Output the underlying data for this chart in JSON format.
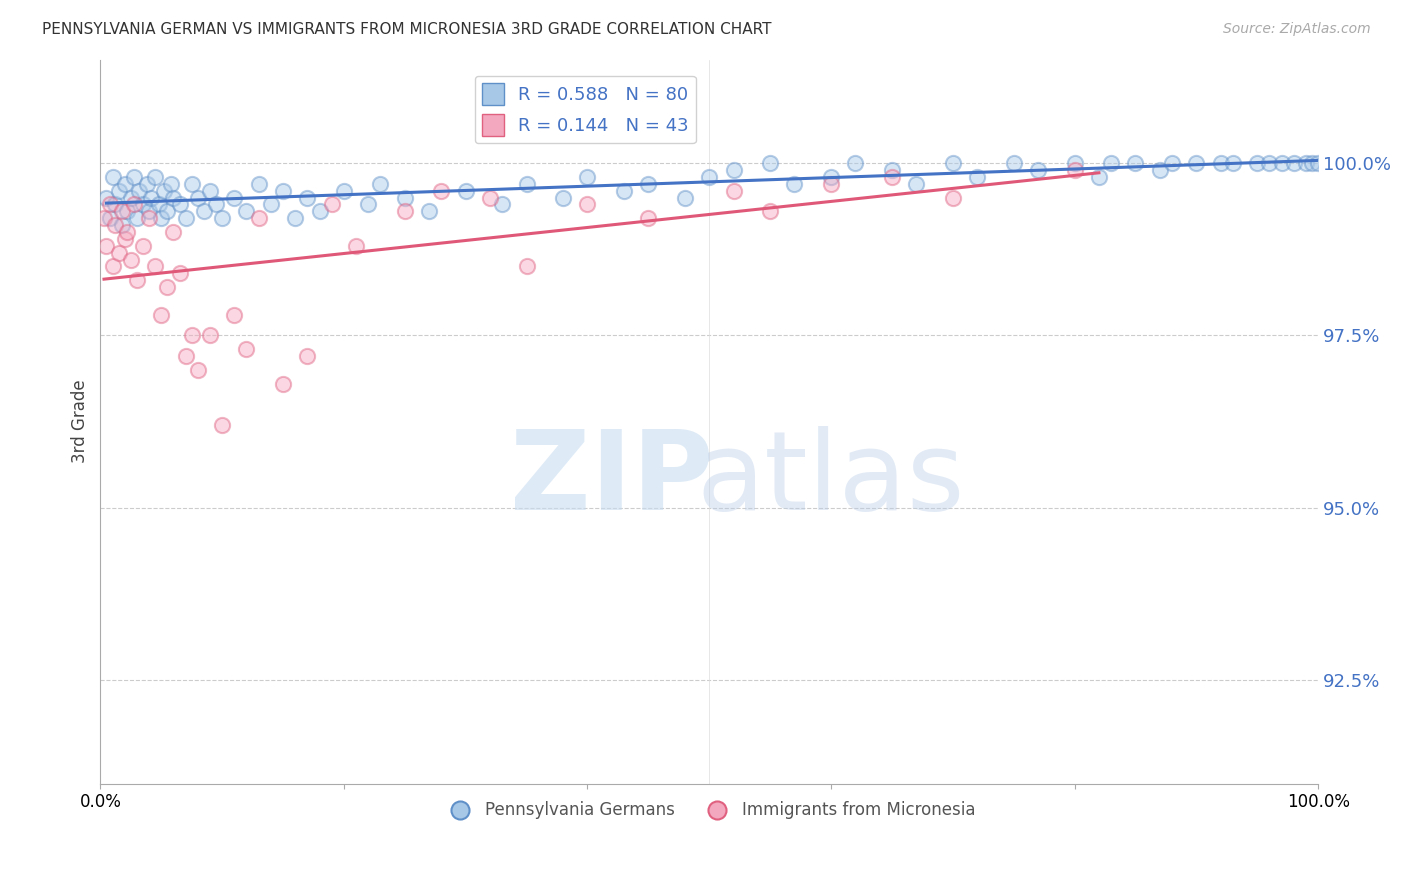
{
  "title": "PENNSYLVANIA GERMAN VS IMMIGRANTS FROM MICRONESIA 3RD GRADE CORRELATION CHART",
  "source": "Source: ZipAtlas.com",
  "ylabel": "3rd Grade",
  "xlim": [
    0,
    100
  ],
  "ylim": [
    91.0,
    101.5
  ],
  "yticks": [
    92.5,
    95.0,
    97.5,
    100.0
  ],
  "ytick_labels": [
    "92.5%",
    "95.0%",
    "97.5%",
    "100.0%"
  ],
  "legend_blue_label": "R = 0.588   N = 80",
  "legend_pink_label": "R = 0.144   N = 43",
  "legend_series_blue": "Pennsylvania Germans",
  "legend_series_pink": "Immigrants from Micronesia",
  "blue_color": "#a8c8e8",
  "pink_color": "#f4a8c0",
  "blue_edge_color": "#6090c8",
  "pink_edge_color": "#e06080",
  "blue_line_color": "#4472c4",
  "pink_line_color": "#e05878",
  "blue_x": [
    0.5,
    0.8,
    1.0,
    1.2,
    1.5,
    1.8,
    2.0,
    2.2,
    2.5,
    2.8,
    3.0,
    3.2,
    3.5,
    3.8,
    4.0,
    4.2,
    4.5,
    4.8,
    5.0,
    5.2,
    5.5,
    5.8,
    6.0,
    6.5,
    7.0,
    7.5,
    8.0,
    8.5,
    9.0,
    9.5,
    10.0,
    11.0,
    12.0,
    13.0,
    14.0,
    15.0,
    16.0,
    17.0,
    18.0,
    20.0,
    22.0,
    23.0,
    25.0,
    27.0,
    30.0,
    33.0,
    35.0,
    38.0,
    40.0,
    43.0,
    45.0,
    48.0,
    50.0,
    52.0,
    55.0,
    57.0,
    60.0,
    62.0,
    65.0,
    67.0,
    70.0,
    72.0,
    75.0,
    77.0,
    80.0,
    82.0,
    83.0,
    85.0,
    87.0,
    88.0,
    90.0,
    92.0,
    93.0,
    95.0,
    96.0,
    97.0,
    98.0,
    99.0,
    99.5,
    100.0
  ],
  "blue_y": [
    99.5,
    99.2,
    99.8,
    99.4,
    99.6,
    99.1,
    99.7,
    99.3,
    99.5,
    99.8,
    99.2,
    99.6,
    99.4,
    99.7,
    99.3,
    99.5,
    99.8,
    99.4,
    99.2,
    99.6,
    99.3,
    99.7,
    99.5,
    99.4,
    99.2,
    99.7,
    99.5,
    99.3,
    99.6,
    99.4,
    99.2,
    99.5,
    99.3,
    99.7,
    99.4,
    99.6,
    99.2,
    99.5,
    99.3,
    99.6,
    99.4,
    99.7,
    99.5,
    99.3,
    99.6,
    99.4,
    99.7,
    99.5,
    99.8,
    99.6,
    99.7,
    99.5,
    99.8,
    99.9,
    100.0,
    99.7,
    99.8,
    100.0,
    99.9,
    99.7,
    100.0,
    99.8,
    100.0,
    99.9,
    100.0,
    99.8,
    100.0,
    100.0,
    99.9,
    100.0,
    100.0,
    100.0,
    100.0,
    100.0,
    100.0,
    100.0,
    100.0,
    100.0,
    100.0,
    100.0
  ],
  "pink_x": [
    0.3,
    0.5,
    0.8,
    1.0,
    1.2,
    1.5,
    1.8,
    2.0,
    2.2,
    2.5,
    2.8,
    3.0,
    3.5,
    4.0,
    4.5,
    5.0,
    5.5,
    6.0,
    6.5,
    7.0,
    7.5,
    8.0,
    9.0,
    10.0,
    11.0,
    12.0,
    13.0,
    15.0,
    17.0,
    19.0,
    21.0,
    25.0,
    28.0,
    32.0,
    35.0,
    40.0,
    45.0,
    52.0,
    55.0,
    60.0,
    65.0,
    70.0,
    80.0
  ],
  "pink_y": [
    99.2,
    98.8,
    99.4,
    98.5,
    99.1,
    98.7,
    99.3,
    98.9,
    99.0,
    98.6,
    99.4,
    98.3,
    98.8,
    99.2,
    98.5,
    97.8,
    98.2,
    99.0,
    98.4,
    97.2,
    97.5,
    97.0,
    97.5,
    96.2,
    97.8,
    97.3,
    99.2,
    96.8,
    97.2,
    99.4,
    98.8,
    99.3,
    99.6,
    99.5,
    98.5,
    99.4,
    99.2,
    99.6,
    99.3,
    99.7,
    99.8,
    99.5,
    99.9
  ],
  "background_color": "#ffffff",
  "grid_color": "#cccccc",
  "marker_size": 120,
  "marker_alpha": 0.45,
  "marker_linewidth": 1.5
}
